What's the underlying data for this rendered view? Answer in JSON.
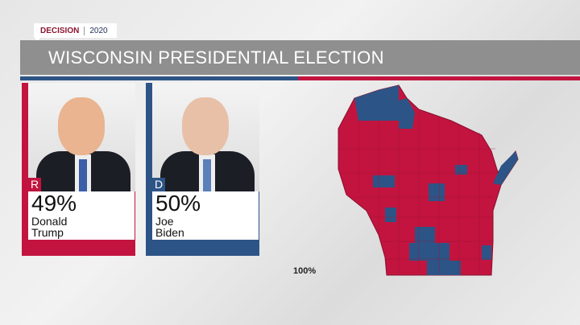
{
  "tag": {
    "brand": "DECISION",
    "year": "2020"
  },
  "header": {
    "title": "WISCONSIN PRESIDENTIAL ELECTION"
  },
  "colors": {
    "republican": "#c2143f",
    "democrat": "#2d5486"
  },
  "candidates": [
    {
      "party": "R",
      "percent": "49%",
      "first": "Donald",
      "last": "Trump"
    },
    {
      "party": "D",
      "percent": "50%",
      "first": "Joe",
      "last": "Biden"
    }
  ],
  "map": {
    "state": "Wisconsin",
    "reporting": "100%"
  }
}
